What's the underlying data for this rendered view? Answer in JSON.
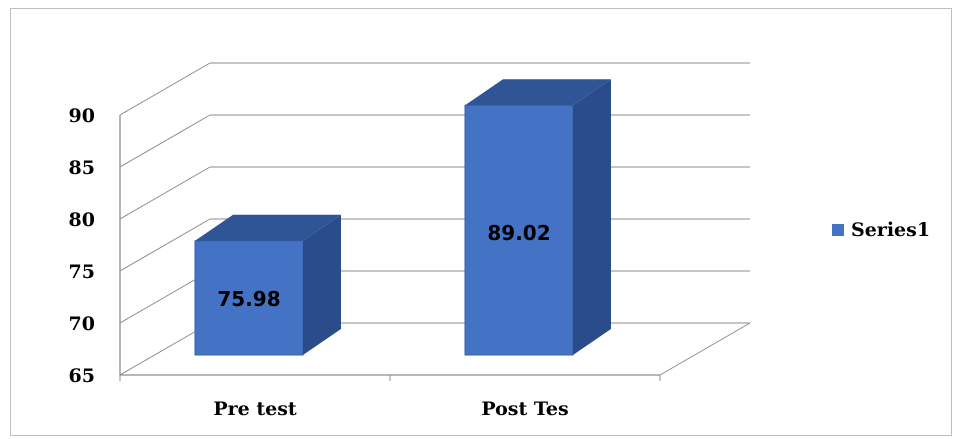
{
  "chart_data": {
    "type": "bar",
    "categories": [
      "Pre test",
      "Post Tes"
    ],
    "series": [
      {
        "name": "Series1",
        "values": [
          75.98,
          89.02
        ],
        "color": "#4472C4"
      }
    ],
    "ylim": [
      65,
      90
    ],
    "yticks": [
      65,
      70,
      75,
      80,
      85,
      90
    ],
    "grid": true,
    "legend_position": "right",
    "data_labels": true,
    "style": "3d-column"
  }
}
